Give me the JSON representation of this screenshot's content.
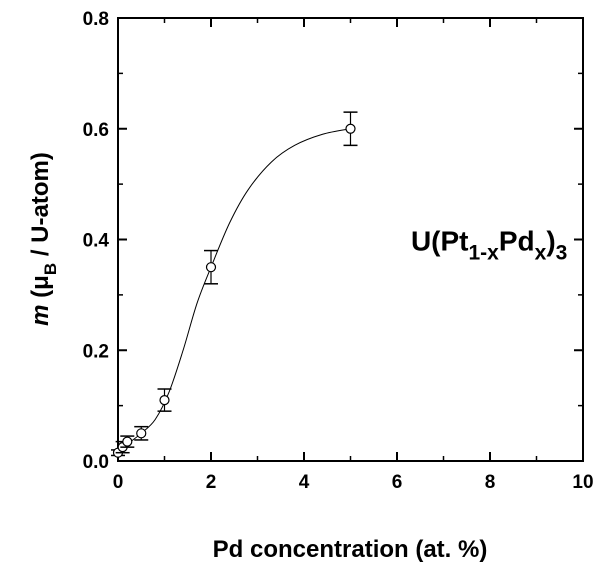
{
  "chart_data": {
    "type": "scatter",
    "xlabel": "Pd concentration (at. %)",
    "ylabel": {
      "italic": "m",
      "open": " (",
      "mu": "μ",
      "mu_sub": "B",
      "rest": " / U-atom)"
    },
    "xlim": [
      0,
      10
    ],
    "ylim": [
      0,
      0.8
    ],
    "x_ticks": [
      0,
      2,
      4,
      6,
      8,
      10
    ],
    "y_ticks": [
      0.0,
      0.2,
      0.4,
      0.6,
      0.8
    ],
    "x_tick_labels": [
      "0",
      "2",
      "4",
      "6",
      "8",
      "10"
    ],
    "y_tick_labels": [
      "0.0",
      "0.2",
      "0.4",
      "0.6",
      "0.8"
    ],
    "grid": false,
    "series": [
      {
        "x": [
          0.0,
          0.1,
          0.2,
          0.5,
          1.0,
          2.0,
          5.0
        ],
        "y": [
          0.015,
          0.025,
          0.035,
          0.05,
          0.11,
          0.35,
          0.6
        ],
        "yerr": [
          0.005,
          0.01,
          0.01,
          0.012,
          0.02,
          0.03,
          0.03
        ],
        "marker": "open-circle",
        "color": "#000000"
      }
    ],
    "fit_curve": {
      "x": [
        0.0,
        0.2,
        0.5,
        0.8,
        1.1,
        1.4,
        1.7,
        2.0,
        2.4,
        2.8,
        3.3,
        3.8,
        4.4,
        5.0
      ],
      "y": [
        0.012,
        0.03,
        0.05,
        0.075,
        0.125,
        0.2,
        0.285,
        0.35,
        0.43,
        0.49,
        0.54,
        0.57,
        0.59,
        0.6
      ]
    },
    "annotation": {
      "base": "U(Pt",
      "sub1": "1-x",
      "mid": "Pd",
      "sub2": "x",
      "close": ")",
      "sub3": "3",
      "anchor_x": 6.3,
      "anchor_y": 0.38
    }
  }
}
